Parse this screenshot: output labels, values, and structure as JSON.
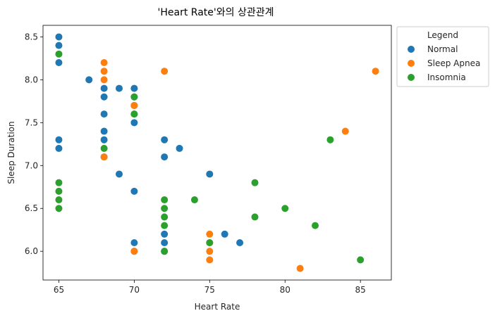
{
  "chart_data": {
    "type": "scatter",
    "title": "'Heart Rate'와의 상관관계",
    "xlabel": "Heart Rate",
    "ylabel": "Sleep Duration",
    "xlim": [
      63.95,
      87.05
    ],
    "ylim": [
      5.665,
      8.635
    ],
    "xticks": [
      65,
      70,
      75,
      80,
      85
    ],
    "yticks": [
      6.0,
      6.5,
      7.0,
      7.5,
      8.0,
      8.5
    ],
    "grid": false,
    "legend": {
      "title": "Legend",
      "placement": "outside-upper-right",
      "entries": [
        "Normal",
        "Sleep Apnea",
        "Insomnia"
      ]
    },
    "series": [
      {
        "name": "Normal",
        "color": "#1f77b4",
        "points": [
          [
            65,
            8.5
          ],
          [
            65,
            8.4
          ],
          [
            65,
            8.2
          ],
          [
            65,
            7.3
          ],
          [
            65,
            7.2
          ],
          [
            67,
            8.0
          ],
          [
            68,
            7.9
          ],
          [
            68,
            7.8
          ],
          [
            68,
            7.6
          ],
          [
            68,
            7.4
          ],
          [
            68,
            7.3
          ],
          [
            68,
            7.1
          ],
          [
            69,
            7.9
          ],
          [
            69,
            6.9
          ],
          [
            70,
            7.9
          ],
          [
            70,
            7.8
          ],
          [
            70,
            7.7
          ],
          [
            70,
            7.6
          ],
          [
            70,
            7.5
          ],
          [
            70,
            6.7
          ],
          [
            70,
            6.1
          ],
          [
            70,
            6.0
          ],
          [
            72,
            7.3
          ],
          [
            72,
            7.1
          ],
          [
            72,
            6.2
          ],
          [
            72,
            6.1
          ],
          [
            72,
            6.0
          ],
          [
            73,
            7.2
          ],
          [
            75,
            6.9
          ],
          [
            76,
            6.2
          ],
          [
            77,
            6.1
          ]
        ]
      },
      {
        "name": "Sleep Apnea",
        "color": "#ff7f0e",
        "points": [
          [
            68,
            8.2
          ],
          [
            68,
            8.1
          ],
          [
            68,
            8.0
          ],
          [
            68,
            7.1
          ],
          [
            70,
            7.7
          ],
          [
            70,
            6.0
          ],
          [
            72,
            8.1
          ],
          [
            75,
            6.2
          ],
          [
            75,
            6.1
          ],
          [
            75,
            6.0
          ],
          [
            75,
            5.9
          ],
          [
            81,
            5.8
          ],
          [
            84,
            7.4
          ],
          [
            86,
            8.1
          ]
        ]
      },
      {
        "name": "Insomnia",
        "color": "#2ca02c",
        "points": [
          [
            65,
            8.3
          ],
          [
            65,
            6.8
          ],
          [
            65,
            6.7
          ],
          [
            65,
            6.6
          ],
          [
            65,
            6.5
          ],
          [
            68,
            7.2
          ],
          [
            70,
            7.8
          ],
          [
            70,
            7.6
          ],
          [
            72,
            6.6
          ],
          [
            72,
            6.5
          ],
          [
            72,
            6.4
          ],
          [
            72,
            6.3
          ],
          [
            72,
            6.0
          ],
          [
            74,
            6.6
          ],
          [
            75,
            6.1
          ],
          [
            78,
            6.8
          ],
          [
            78,
            6.4
          ],
          [
            80,
            6.5
          ],
          [
            82,
            6.3
          ],
          [
            83,
            7.3
          ],
          [
            85,
            5.9
          ]
        ]
      }
    ]
  }
}
